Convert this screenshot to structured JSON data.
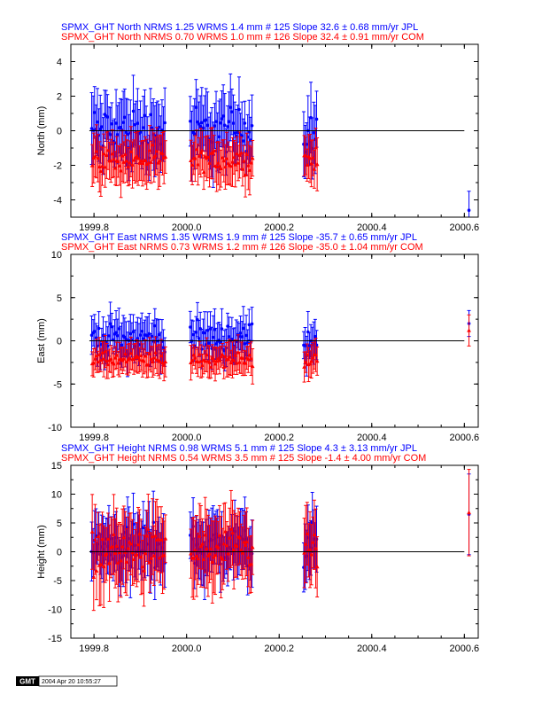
{
  "chart_data": [
    {
      "type": "scatter",
      "ylabel": "North (mm)",
      "ylim": [
        -5,
        5
      ],
      "yticks": [
        -4,
        -2,
        0,
        2,
        4
      ],
      "xlim": [
        1999.75,
        2000.63
      ],
      "xticks": [
        "1999.8",
        "2000.0",
        "2000.2",
        "2000.4",
        "2000.6"
      ],
      "zero_line": true,
      "series": [
        {
          "name": "SPMX_GHT North NRMS 1.25 WRMS  1.4 mm # 125 Slope  32.6 ±  0.68 mm/yr JPL",
          "color": "#0000ff",
          "marker": "dot",
          "center": 0.0,
          "spread": 1.5,
          "err": 1.6,
          "extra_points": [
            {
              "x": 2000.61,
              "y": -4.6,
              "err": 1.1
            }
          ]
        },
        {
          "name": "SPMX_GHT North NRMS 0.70 WRMS  1.0 mm # 126 Slope  32.4 ±  0.91 mm/yr COM",
          "color": "#ff0000",
          "marker": "triangle",
          "center": -1.7,
          "spread": 0.7,
          "err": 1.2,
          "extra_points": []
        }
      ]
    },
    {
      "type": "scatter",
      "ylabel": "East (mm)",
      "ylim": [
        -10,
        10
      ],
      "yticks": [
        -10,
        -5,
        0,
        5,
        10
      ],
      "xlim": [
        1999.75,
        2000.63
      ],
      "xticks": [
        "1999.8",
        "2000.0",
        "2000.2",
        "2000.4",
        "2000.6"
      ],
      "zero_line": true,
      "series": [
        {
          "name": "SPMX_GHT East NRMS 1.35 WRMS  1.9 mm # 125 Slope  -35.7 ±  0.65 mm/yr JPL",
          "color": "#0000ff",
          "marker": "dot",
          "center": 0.3,
          "spread": 1.8,
          "err": 2.0,
          "extra_points": [
            {
              "x": 2000.61,
              "y": 2.0,
              "err": 1.5
            }
          ]
        },
        {
          "name": "SPMX_GHT East NRMS 0.73 WRMS  1.2 mm # 126 Slope  -35.0 ±  1.04 mm/yr COM",
          "color": "#ff0000",
          "marker": "triangle",
          "center": -2.2,
          "spread": 0.9,
          "err": 1.6,
          "extra_points": [
            {
              "x": 2000.61,
              "y": 1.2,
              "err": 1.8
            }
          ]
        }
      ]
    },
    {
      "type": "scatter",
      "ylabel": "Height (mm)",
      "ylim": [
        -15,
        15
      ],
      "yticks": [
        -15,
        -10,
        -5,
        0,
        5,
        10,
        15
      ],
      "xlim": [
        1999.75,
        2000.63
      ],
      "xticks": [
        "1999.8",
        "2000.0",
        "2000.2",
        "2000.4",
        "2000.6"
      ],
      "zero_line": true,
      "series": [
        {
          "name": "SPMX_GHT Height NRMS 0.98 WRMS  5.1 mm # 125 Slope    4.3 ±  3.13 mm/yr JPL",
          "color": "#0000ff",
          "marker": "dot",
          "center": 1.0,
          "spread": 4.5,
          "err": 4.5,
          "extra_points": [
            {
              "x": 2000.61,
              "y": 6.5,
              "err": 7.0
            }
          ]
        },
        {
          "name": "SPMX_GHT Height NRMS 0.54 WRMS  3.5 mm # 125 Slope   -1.4 ±  4.00 mm/yr COM",
          "color": "#ff0000",
          "marker": "triangle",
          "center": 0.0,
          "spread": 4.0,
          "err": 5.5,
          "extra_points": [
            {
              "x": 2000.61,
              "y": 6.8,
              "err": 7.5
            }
          ]
        }
      ]
    }
  ],
  "footer": {
    "logo_text": "GMT",
    "timestamp": "2004 Apr 20 10:55:27"
  }
}
